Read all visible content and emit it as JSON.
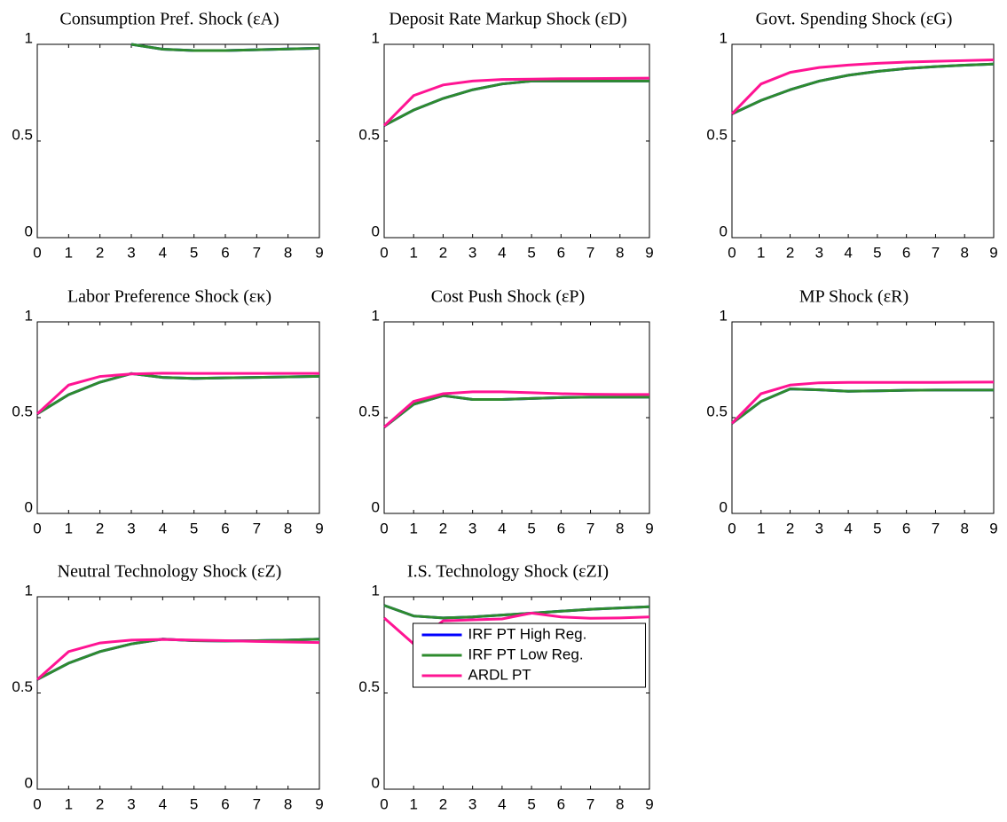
{
  "chart_data": [
    {
      "type": "line",
      "title": "Consumption Pref. Shock (εA)",
      "x": [
        0,
        1,
        2,
        3,
        4,
        5,
        6,
        7,
        8,
        9
      ],
      "xlim": [
        0,
        9
      ],
      "xticks": [
        0,
        1,
        2,
        3,
        4,
        5,
        6,
        7,
        8,
        9
      ],
      "ylim": [
        0,
        1
      ],
      "yticks": [
        0,
        0.5,
        1
      ],
      "series": [
        {
          "color": "#0000ff",
          "values": [
            null,
            null,
            null,
            1,
            0.975,
            0.968,
            0.968,
            0.972,
            0.976,
            0.98
          ]
        },
        {
          "color": "#2e8b2e",
          "values": [
            null,
            null,
            null,
            1,
            0.975,
            0.968,
            0.968,
            0.972,
            0.976,
            0.98
          ]
        }
      ]
    },
    {
      "type": "line",
      "title": "Deposit Rate Markup Shock (εD)",
      "x": [
        0,
        1,
        2,
        3,
        4,
        5,
        6,
        7,
        8,
        9
      ],
      "xlim": [
        0,
        9
      ],
      "xticks": [
        0,
        1,
        2,
        3,
        4,
        5,
        6,
        7,
        8,
        9
      ],
      "ylim": [
        0,
        1
      ],
      "yticks": [
        0,
        0.5,
        1
      ],
      "series": [
        {
          "color": "#0000ff",
          "values": [
            0.58,
            0.66,
            0.72,
            0.765,
            0.795,
            0.81,
            0.81,
            0.81,
            0.81,
            0.81
          ]
        },
        {
          "color": "#2e8b2e",
          "values": [
            0.58,
            0.66,
            0.72,
            0.765,
            0.795,
            0.81,
            0.81,
            0.81,
            0.81,
            0.81
          ]
        },
        {
          "color": "#ff1493",
          "values": [
            0.58,
            0.735,
            0.79,
            0.81,
            0.818,
            0.82,
            0.822,
            0.823,
            0.824,
            0.825
          ]
        }
      ]
    },
    {
      "type": "line",
      "title": "Govt. Spending Shock (εG)",
      "x": [
        0,
        1,
        2,
        3,
        4,
        5,
        6,
        7,
        8,
        9
      ],
      "xlim": [
        0,
        9
      ],
      "xticks": [
        0,
        1,
        2,
        3,
        4,
        5,
        6,
        7,
        8,
        9
      ],
      "ylim": [
        0,
        1
      ],
      "yticks": [
        0,
        0.5,
        1
      ],
      "series": [
        {
          "color": "#0000ff",
          "values": [
            0.64,
            0.71,
            0.765,
            0.81,
            0.84,
            0.86,
            0.875,
            0.885,
            0.892,
            0.898
          ]
        },
        {
          "color": "#2e8b2e",
          "values": [
            0.64,
            0.71,
            0.765,
            0.81,
            0.84,
            0.86,
            0.875,
            0.885,
            0.892,
            0.898
          ]
        },
        {
          "color": "#ff1493",
          "values": [
            0.64,
            0.795,
            0.855,
            0.88,
            0.893,
            0.902,
            0.908,
            0.912,
            0.916,
            0.92
          ]
        }
      ]
    },
    {
      "type": "line",
      "title": "Labor Preference Shock (εκ)",
      "x": [
        0,
        1,
        2,
        3,
        4,
        5,
        6,
        7,
        8,
        9
      ],
      "xlim": [
        0,
        9
      ],
      "xticks": [
        0,
        1,
        2,
        3,
        4,
        5,
        6,
        7,
        8,
        9
      ],
      "ylim": [
        0,
        1
      ],
      "yticks": [
        0,
        0.5,
        1
      ],
      "series": [
        {
          "color": "#0000ff",
          "values": [
            0.52,
            0.62,
            0.685,
            0.73,
            0.71,
            0.705,
            0.708,
            0.71,
            0.713,
            0.716
          ]
        },
        {
          "color": "#2e8b2e",
          "values": [
            0.52,
            0.62,
            0.685,
            0.73,
            0.71,
            0.705,
            0.708,
            0.71,
            0.713,
            0.716
          ]
        },
        {
          "color": "#ff1493",
          "values": [
            0.52,
            0.67,
            0.715,
            0.728,
            0.732,
            0.731,
            0.731,
            0.731,
            0.731,
            0.731
          ]
        }
      ]
    },
    {
      "type": "line",
      "title": "Cost Push Shock (εP)",
      "x": [
        0,
        1,
        2,
        3,
        4,
        5,
        6,
        7,
        8,
        9
      ],
      "xlim": [
        0,
        9
      ],
      "xticks": [
        0,
        1,
        2,
        3,
        4,
        5,
        6,
        7,
        8,
        9
      ],
      "ylim": [
        0,
        1
      ],
      "yticks": [
        0,
        0.5,
        1
      ],
      "series": [
        {
          "color": "#0000ff",
          "values": [
            0.45,
            0.57,
            0.615,
            0.595,
            0.595,
            0.6,
            0.605,
            0.607,
            0.607,
            0.607
          ]
        },
        {
          "color": "#2e8b2e",
          "values": [
            0.45,
            0.57,
            0.615,
            0.595,
            0.595,
            0.6,
            0.605,
            0.607,
            0.607,
            0.607
          ]
        },
        {
          "color": "#ff1493",
          "values": [
            0.45,
            0.585,
            0.625,
            0.635,
            0.635,
            0.63,
            0.625,
            0.622,
            0.621,
            0.621
          ]
        }
      ]
    },
    {
      "type": "line",
      "title": "MP Shock (εR)",
      "x": [
        0,
        1,
        2,
        3,
        4,
        5,
        6,
        7,
        8,
        9
      ],
      "xlim": [
        0,
        9
      ],
      "xticks": [
        0,
        1,
        2,
        3,
        4,
        5,
        6,
        7,
        8,
        9
      ],
      "ylim": [
        0,
        1
      ],
      "yticks": [
        0,
        0.5,
        1
      ],
      "series": [
        {
          "color": "#0000ff",
          "values": [
            0.47,
            0.585,
            0.65,
            0.645,
            0.638,
            0.64,
            0.643,
            0.644,
            0.644,
            0.644
          ]
        },
        {
          "color": "#2e8b2e",
          "values": [
            0.47,
            0.585,
            0.65,
            0.645,
            0.638,
            0.64,
            0.643,
            0.644,
            0.644,
            0.644
          ]
        },
        {
          "color": "#ff1493",
          "values": [
            0.47,
            0.625,
            0.67,
            0.682,
            0.684,
            0.684,
            0.684,
            0.684,
            0.685,
            0.686
          ]
        }
      ]
    },
    {
      "type": "line",
      "title": "Neutral Technology Shock (εZ)",
      "x": [
        0,
        1,
        2,
        3,
        4,
        5,
        6,
        7,
        8,
        9
      ],
      "xlim": [
        0,
        9
      ],
      "xticks": [
        0,
        1,
        2,
        3,
        4,
        5,
        6,
        7,
        8,
        9
      ],
      "ylim": [
        0,
        1
      ],
      "yticks": [
        0,
        0.5,
        1
      ],
      "series": [
        {
          "color": "#0000ff",
          "values": [
            0.57,
            0.655,
            0.715,
            0.755,
            0.78,
            0.772,
            0.77,
            0.772,
            0.775,
            0.78
          ]
        },
        {
          "color": "#2e8b2e",
          "values": [
            0.57,
            0.655,
            0.715,
            0.755,
            0.78,
            0.772,
            0.77,
            0.772,
            0.775,
            0.78
          ]
        },
        {
          "color": "#ff1493",
          "values": [
            0.57,
            0.715,
            0.76,
            0.775,
            0.778,
            0.775,
            0.772,
            0.768,
            0.765,
            0.762
          ]
        }
      ]
    },
    {
      "type": "line",
      "title": "I.S. Technology Shock (εZI)",
      "x": [
        0,
        1,
        2,
        3,
        4,
        5,
        6,
        7,
        8,
        9
      ],
      "xlim": [
        0,
        9
      ],
      "xticks": [
        0,
        1,
        2,
        3,
        4,
        5,
        6,
        7,
        8,
        9
      ],
      "ylim": [
        0,
        1
      ],
      "yticks": [
        0,
        0.5,
        1
      ],
      "legend": "lower-center",
      "series": [
        {
          "name": "IRF PT High Reg.",
          "color": "#0000ff",
          "values": [
            0.955,
            0.9,
            0.89,
            0.895,
            0.905,
            0.915,
            0.925,
            0.935,
            0.942,
            0.948
          ]
        },
        {
          "name": "IRF PT Low Reg.",
          "color": "#2e8b2e",
          "values": [
            0.955,
            0.9,
            0.89,
            0.895,
            0.905,
            0.915,
            0.925,
            0.935,
            0.942,
            0.948
          ]
        },
        {
          "name": "ARDL PT",
          "color": "#ff1493",
          "values": [
            0.89,
            0.755,
            0.875,
            0.88,
            0.885,
            0.915,
            0.895,
            0.888,
            0.89,
            0.895
          ]
        }
      ]
    }
  ]
}
